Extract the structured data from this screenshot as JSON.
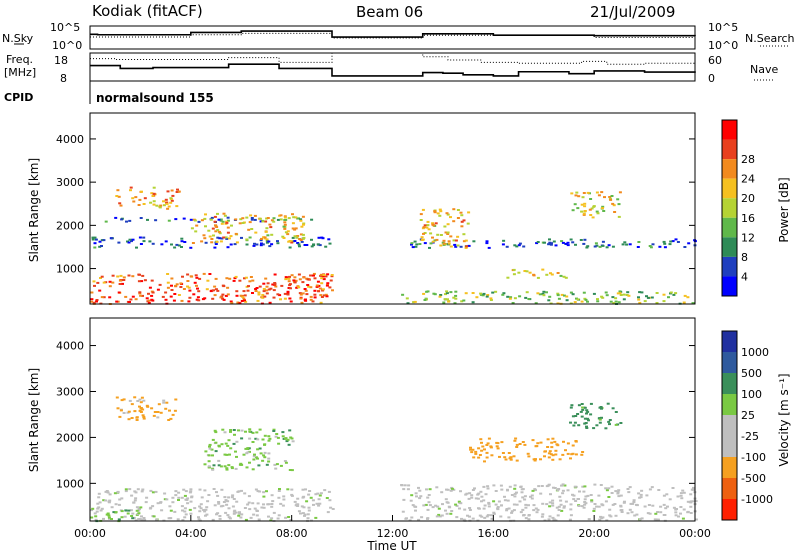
{
  "header": {
    "station": "Kodiak (fitACF)",
    "beam": "Beam 06",
    "date": "21/Jul/2009"
  },
  "left_labels": {
    "nsky": "N.Sky",
    "freq": "Freq.",
    "freq_unit": "[MHz]",
    "cpid": "CPID"
  },
  "right_labels": {
    "nsearch": "N.Search",
    "nave": "Nave"
  },
  "cpid_text": "normalsound 155",
  "noise_panel": {
    "left_ticks": [
      "10^5",
      "10^0"
    ],
    "right_ticks": [
      "10^5",
      "10^0"
    ]
  },
  "freq_panel": {
    "left_ticks": [
      "18",
      "8"
    ],
    "right_ticks": [
      "60",
      "0"
    ]
  },
  "colors": {
    "power": [
      "#0000ff",
      "#1f3fbf",
      "#2e8b57",
      "#5fb84a",
      "#b5d334",
      "#f5c020",
      "#f28a1e",
      "#e8401e",
      "#ff0000"
    ],
    "velocity": [
      "#2030a0",
      "#2f5a9e",
      "#3a8f5a",
      "#7ac943",
      "#bfbfbf",
      "#bfbfbf",
      "#f5a020",
      "#ee6010",
      "#ff2000"
    ],
    "gap": "#ffffff"
  },
  "chart_data": [
    {
      "type": "line",
      "name": "noise-panel",
      "x_unit": "hours UT",
      "xlim": [
        0,
        24
      ],
      "series": [
        {
          "name": "N.Sky",
          "x": [
            0,
            0.3,
            4,
            6,
            9.6,
            13.2,
            16,
            20,
            24
          ],
          "y": [
            3.2,
            3.1,
            3.6,
            3.9,
            2.6,
            3.3,
            3.0,
            2.9,
            2.8
          ]
        },
        {
          "name": "N.Search",
          "x": [
            0,
            4,
            6,
            9.6,
            13.2,
            20,
            24
          ],
          "y": [
            2.6,
            3.1,
            3.4,
            2.4,
            3.0,
            2.5,
            2.4
          ]
        }
      ]
    },
    {
      "type": "line",
      "name": "frequency-panel",
      "x_unit": "hours UT",
      "xlim": [
        0,
        24
      ],
      "series": [
        {
          "name": "Freq",
          "x": [
            0,
            1.2,
            2.5,
            5.5,
            7.5,
            9.6,
            13.2,
            14.0,
            14.8,
            16.0,
            17.0,
            19.0,
            20.0,
            22.0,
            24.0
          ],
          "y": [
            13.5,
            12.5,
            12.8,
            14.0,
            12.5,
            9.8,
            11.0,
            10.8,
            10.2,
            9.8,
            11.3,
            10.6,
            11.6,
            11.2,
            11.5
          ]
        },
        {
          "name": "Nave",
          "x": [
            0,
            1.0,
            5.5,
            7.5,
            9.6,
            13.2,
            14.2,
            15.5,
            17.0,
            19.5,
            20.5,
            22.0,
            24.0
          ],
          "y": [
            48,
            46,
            50,
            40,
            60,
            52,
            45,
            40,
            38,
            42,
            36,
            38,
            36
          ]
        }
      ]
    },
    {
      "type": "heatmap",
      "name": "power",
      "xlabel": "",
      "ylabel": "Slant Range [km]",
      "x_unit": "hours UT",
      "xlim": [
        0,
        24
      ],
      "ylim": [
        180,
        4600
      ],
      "yticks": [
        1000,
        2000,
        3000,
        4000
      ],
      "colorbar": {
        "label": "Power [dB]",
        "ticks": [
          "4",
          "8",
          "12",
          "16",
          "20",
          "24",
          "28"
        ],
        "range": [
          0,
          32
        ]
      },
      "data_gaps": [
        [
          9.6,
          12.3
        ]
      ],
      "echo_bands": [
        {
          "t0": 0.0,
          "t1": 9.6,
          "r0": 200,
          "r1": 900,
          "level": 26
        },
        {
          "t0": 0.0,
          "t1": 9.6,
          "r0": 1500,
          "r1": 1750,
          "level": 6
        },
        {
          "t0": 0.0,
          "t1": 9.6,
          "r0": 2100,
          "r1": 2200,
          "level": 7
        },
        {
          "t0": 1.0,
          "t1": 3.5,
          "r0": 2400,
          "r1": 2900,
          "level": 22
        },
        {
          "t0": 4.0,
          "t1": 8.5,
          "r0": 1600,
          "r1": 2300,
          "level": 20
        },
        {
          "t0": 7.0,
          "t1": 9.6,
          "r0": 500,
          "r1": 900,
          "level": 26
        },
        {
          "t0": 12.3,
          "t1": 24.0,
          "r0": 200,
          "r1": 500,
          "level": 14
        },
        {
          "t0": 12.3,
          "t1": 24.0,
          "r0": 1500,
          "r1": 1700,
          "level": 6
        },
        {
          "t0": 13.0,
          "t1": 15.0,
          "r0": 1500,
          "r1": 2400,
          "level": 20
        },
        {
          "t0": 16.5,
          "t1": 19.0,
          "r0": 800,
          "r1": 1000,
          "level": 18
        },
        {
          "t0": 19.0,
          "t1": 21.0,
          "r0": 2200,
          "r1": 2800,
          "level": 18
        }
      ]
    },
    {
      "type": "heatmap",
      "name": "velocity",
      "xlabel": "Time UT",
      "ylabel": "Slant Range [km]",
      "x_unit": "hours UT",
      "xlim": [
        0,
        24
      ],
      "ylim": [
        180,
        4600
      ],
      "yticks": [
        1000,
        2000,
        3000,
        4000
      ],
      "xticks": [
        "00:00",
        "04:00",
        "08:00",
        "12:00",
        "16:00",
        "20:00",
        "00:00"
      ],
      "xtick_hours": [
        0,
        4,
        8,
        12,
        16,
        20,
        24
      ],
      "colorbar": {
        "label": "Velocity [m s⁻¹]",
        "ticks": [
          "1000",
          "500",
          "100",
          "25",
          "-25",
          "-100",
          "-500",
          "-1000"
        ]
      },
      "data_gaps": [
        [
          9.6,
          12.3
        ]
      ],
      "echo_bands": [
        {
          "t0": 0.0,
          "t1": 9.6,
          "r0": 200,
          "r1": 900,
          "v": 0
        },
        {
          "t0": 1.0,
          "t1": 3.5,
          "r0": 2400,
          "r1": 2900,
          "v": -150
        },
        {
          "t0": 0.0,
          "t1": 2.0,
          "r0": 200,
          "r1": 500,
          "v": 60
        },
        {
          "t0": 4.5,
          "t1": 8.0,
          "r0": 1300,
          "r1": 2200,
          "v": 60
        },
        {
          "t0": 12.3,
          "t1": 24.0,
          "r0": 200,
          "r1": 1000,
          "v": 0
        },
        {
          "t0": 15.0,
          "t1": 19.5,
          "r0": 1500,
          "r1": 2000,
          "v": -300
        },
        {
          "t0": 19.0,
          "t1": 21.0,
          "r0": 2200,
          "r1": 2800,
          "v": 200
        }
      ]
    }
  ]
}
